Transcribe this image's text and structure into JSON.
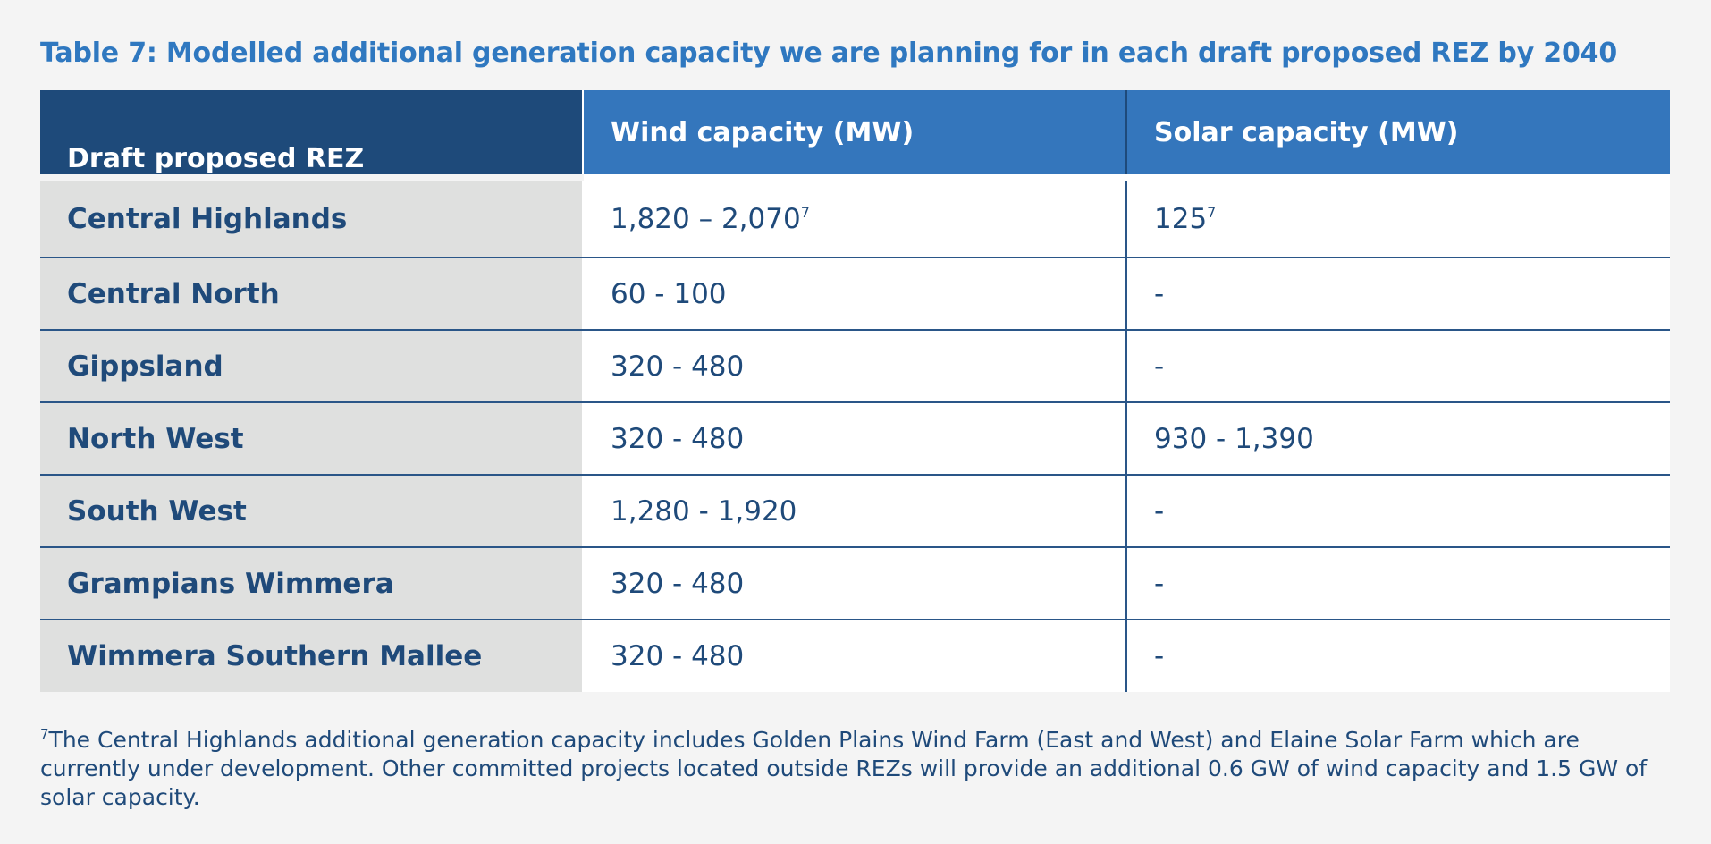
{
  "title": "Table 7: Modelled additional generation capacity we are planning for in each draft proposed REZ by 2040",
  "table": {
    "headers": {
      "region": "Draft proposed REZ",
      "wind": "Wind capacity (MW)",
      "solar": "Solar capacity (MW)"
    },
    "rows": [
      {
        "region": "Central Highlands",
        "wind": "1,820 – 2,070",
        "wind_note": "7",
        "solar": "125",
        "solar_note": "7"
      },
      {
        "region": "Central North",
        "wind": "60 - 100",
        "solar": "-"
      },
      {
        "region": "Gippsland",
        "wind": "320 - 480",
        "solar": "-"
      },
      {
        "region": "North West",
        "wind": "320 - 480",
        "solar": "930 - 1,390"
      },
      {
        "region": "South West",
        "wind": "1,280 - 1,920",
        "solar": "-"
      },
      {
        "region": "Grampians Wimmera",
        "wind": "320 - 480",
        "solar": "-"
      },
      {
        "region": "Wimmera Southern Mallee",
        "wind": "320 - 480",
        "solar": "-"
      }
    ]
  },
  "footnote": {
    "marker": "7",
    "text": "The Central Highlands additional generation capacity includes Golden Plains Wind Farm (East and West) and Elaine Solar Farm which are currently under development. Other committed projects located outside REZs will provide an additional 0.6 GW of wind capacity and 1.5 GW of solar capacity."
  },
  "colors": {
    "title": "#2f78c0",
    "header_dark": "#1e4a7a",
    "header_light": "#3476bc",
    "region_bg": "#dfe0df",
    "text": "#1f4a7a",
    "page_bg": "#f4f4f4"
  }
}
